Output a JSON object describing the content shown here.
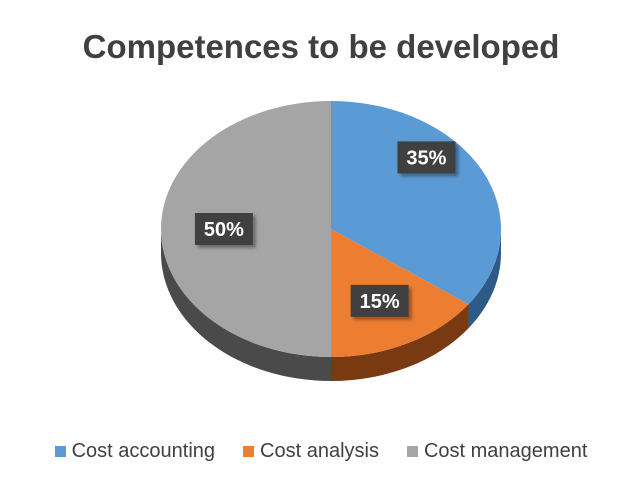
{
  "chart_data": {
    "type": "pie",
    "title": "Competences to be developed",
    "categories": [
      "Cost accounting",
      "Cost analysis",
      "Cost management"
    ],
    "values": [
      35,
      15,
      50
    ],
    "data_labels": [
      "35%",
      "15%",
      "50%"
    ],
    "colors": [
      "#5B9BD5",
      "#ED7D31",
      "#A5A5A5"
    ],
    "side_colors": [
      "#2E5A87",
      "#7A3A11",
      "#4A4A4A"
    ],
    "legend_position": "bottom",
    "style": "3d"
  }
}
